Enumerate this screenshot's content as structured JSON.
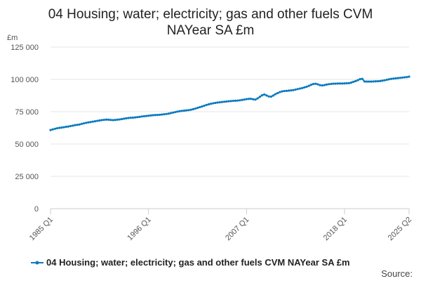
{
  "chart_data": {
    "type": "line",
    "title_line1": "04 Housing; water; electricity; gas and other fuels CVM",
    "title_line2": "NAYear SA £m",
    "ylabel": "£m",
    "ylim": [
      0,
      125000
    ],
    "yticks": [
      0,
      25000,
      50000,
      75000,
      100000,
      125000
    ],
    "ytick_labels": [
      "0",
      "25 000",
      "50 000",
      "75 000",
      "100 000",
      "125 000"
    ],
    "x_start": "1985 Q1",
    "x_end": "2025 Q2",
    "xtick_labels": [
      "1985 Q1",
      "1996 Q1",
      "2007 Q1",
      "2018 Q1",
      "2025 Q2"
    ],
    "xtick_index": [
      0,
      44,
      88,
      132,
      161
    ],
    "grid": true,
    "legend_position": "bottom",
    "series": [
      {
        "name": "04 Housing; water; electricity; gas and other fuels CVM NAYear SA £m",
        "color": "#0a7bbf",
        "values": [
          60800,
          61300,
          61800,
          62200,
          62500,
          62700,
          63000,
          63300,
          63500,
          63900,
          64200,
          64600,
          64800,
          65100,
          65600,
          66000,
          66400,
          66700,
          67000,
          67300,
          67600,
          67900,
          68200,
          68500,
          68700,
          68900,
          68800,
          68600,
          68500,
          68600,
          68800,
          69000,
          69300,
          69600,
          69900,
          70100,
          70300,
          70400,
          70600,
          70800,
          71000,
          71300,
          71500,
          71700,
          71900,
          72100,
          72300,
          72400,
          72500,
          72600,
          72800,
          73000,
          73200,
          73500,
          73900,
          74300,
          74700,
          75100,
          75400,
          75600,
          75800,
          76000,
          76200,
          76500,
          76900,
          77400,
          77900,
          78500,
          79000,
          79600,
          80200,
          80700,
          81100,
          81500,
          81800,
          82100,
          82300,
          82500,
          82700,
          82900,
          83100,
          83200,
          83400,
          83500,
          83600,
          83800,
          84100,
          84400,
          84700,
          84900,
          85000,
          84600,
          84400,
          85300,
          86500,
          87700,
          88300,
          87600,
          86800,
          86600,
          87500,
          88600,
          89400,
          90200,
          90700,
          91000,
          91100,
          91300,
          91500,
          91700,
          92100,
          92500,
          92900,
          93300,
          93800,
          94300,
          95000,
          95800,
          96400,
          96600,
          96200,
          95500,
          95300,
          95600,
          96000,
          96300,
          96500,
          96700,
          96700,
          96800,
          96800,
          96800,
          96900,
          97000,
          97100,
          97500,
          98100,
          98700,
          99400,
          100200,
          100400,
          98400,
          98300,
          98300,
          98300,
          98400,
          98500,
          98600,
          98700,
          99000,
          99300,
          99700,
          100100,
          100400,
          100600,
          100800,
          101000,
          101200,
          101400,
          101600,
          101800,
          102100
        ]
      }
    ],
    "source_label": "Source:"
  }
}
